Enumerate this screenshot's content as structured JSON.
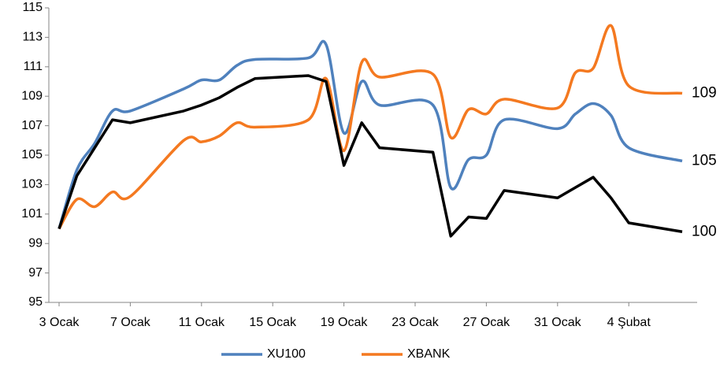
{
  "chart_data": {
    "type": "line",
    "categories": [
      "3 Ocak",
      null,
      null,
      null,
      "7 Ocak",
      null,
      null,
      null,
      "11 Ocak",
      null,
      null,
      null,
      "15 Ocak",
      null,
      null,
      null,
      "19 Ocak",
      null,
      null,
      null,
      "23 Ocak",
      null,
      null,
      null,
      "27 Ocak",
      null,
      null,
      null,
      "31 Ocak",
      null,
      null,
      null,
      "4 Şubat",
      null,
      null,
      null
    ],
    "series": [
      {
        "name": "XU100",
        "color": "#4f81bd",
        "smooth": true,
        "end_label": "105",
        "values": [
          100,
          104,
          105.8,
          108,
          108,
          null,
          null,
          109.5,
          110.1,
          110.1,
          111.1,
          111.5,
          null,
          null,
          111.6,
          112.5,
          106.5,
          110,
          108.4,
          null,
          null,
          108.4,
          102.8,
          104.7,
          105,
          107.4,
          null,
          null,
          106.8,
          107.8,
          108.5,
          107.7,
          105.5,
          null,
          null,
          104.6
        ]
      },
      {
        "name": "XBANK",
        "color": "#f47920",
        "smooth": true,
        "end_label": "109",
        "values": [
          100,
          102,
          101.5,
          102.5,
          102.2,
          null,
          null,
          106,
          105.9,
          106.3,
          107.2,
          106.9,
          null,
          null,
          107.4,
          110.2,
          105.3,
          111.3,
          110.3,
          null,
          null,
          110.5,
          106.2,
          108.1,
          107.8,
          108.8,
          null,
          null,
          108.2,
          110.6,
          110.9,
          113.8,
          109.7,
          null,
          null,
          109.2
        ]
      },
      {
        "color": "#000000",
        "smooth": false,
        "end_label": "100",
        "values": [
          100,
          103.6,
          105.5,
          107.4,
          107.2,
          null,
          null,
          108,
          108.4,
          108.9,
          109.6,
          110.2,
          null,
          null,
          110.4,
          110,
          104.3,
          107.2,
          105.5,
          null,
          null,
          105.2,
          99.5,
          100.8,
          100.7,
          102.6,
          null,
          null,
          102.1,
          102.8,
          103.5,
          102.1,
          100.4,
          null,
          null,
          99.8
        ]
      }
    ],
    "ylim": [
      95,
      115
    ],
    "yticks": [
      95,
      97,
      99,
      101,
      103,
      105,
      107,
      109,
      111,
      113,
      115
    ],
    "grid": false,
    "legend": "bottom"
  }
}
